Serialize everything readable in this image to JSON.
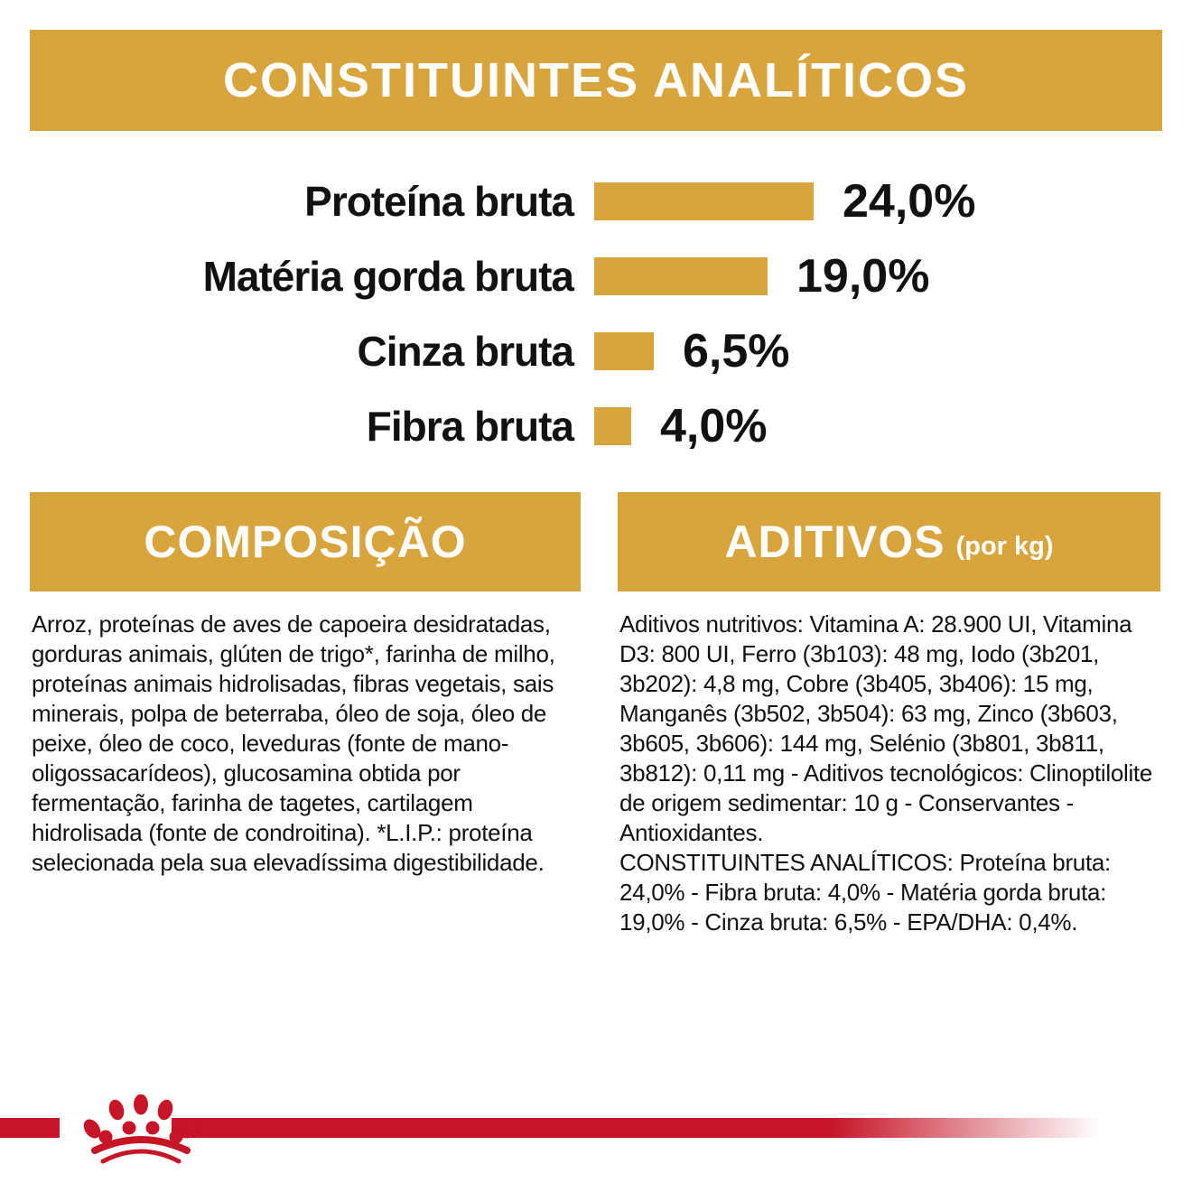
{
  "page": {
    "gold": "#D8A43C",
    "red": "#C51527",
    "text_color": "#111111",
    "background": "#FFFFFF"
  },
  "header": {
    "title": "CONSTITUINTES ANALÍTICOS"
  },
  "chart_data": {
    "type": "bar",
    "orientation": "horizontal",
    "title": "CONSTITUINTES ANALÍTICOS",
    "categories": [
      "Proteína bruta",
      "Matéria gorda bruta",
      "Cinza bruta",
      "Fibra bruta"
    ],
    "values": [
      24.0,
      19.0,
      6.5,
      4.0
    ],
    "value_labels": [
      "24,0%",
      "19,0%",
      "6,5%",
      "4,0%"
    ],
    "unit": "%",
    "xlim": [
      0,
      24
    ],
    "bar_color": "#D8A43C",
    "grid": false,
    "legend": false
  },
  "composition": {
    "title": "COMPOSIÇÃO",
    "body": "Arroz, proteínas de aves de capoeira desidratadas, gorduras animais, glúten de trigo*, farinha de milho, proteínas animais hidrolisadas, fibras vegetais, sais minerais, polpa de beterraba, óleo de soja, óleo de peixe, óleo de coco, leveduras (fonte de mano-oligossacarídeos), glucosamina obtida por fermentação, farinha de tagetes, cartilagem hidrolisada (fonte de condroitina). *L.I.P.: proteína selecionada pela sua elevadíssima digestibilidade."
  },
  "additives": {
    "title": "ADITIVOS",
    "title_suffix": "(por kg)",
    "body": "Aditivos nutritivos: Vitamina A: 28.900 UI, Vitamina D3: 800 UI, Ferro (3b103): 48 mg, Iodo (3b201, 3b202): 4,8 mg, Cobre (3b405, 3b406): 15 mg, Manganês (3b502, 3b504): 63 mg, Zinco (3b603, 3b605, 3b606): 144 mg, Selénio (3b801, 3b811, 3b812): 0,11 mg - Aditivos tecnológicos: Clinoptilolite de origem sedimentar: 10 g - Conservantes - Antioxidantes.",
    "analytical": "CONSTITUINTES ANALÍTICOS: Proteína bruta: 24,0% - Fibra bruta: 4,0% - Matéria gorda bruta: 19,0% - Cinza bruta: 6,5% - EPA/DHA: 0,4%."
  },
  "footer": {
    "brand_icon": "royal-canin-crown-icon"
  }
}
